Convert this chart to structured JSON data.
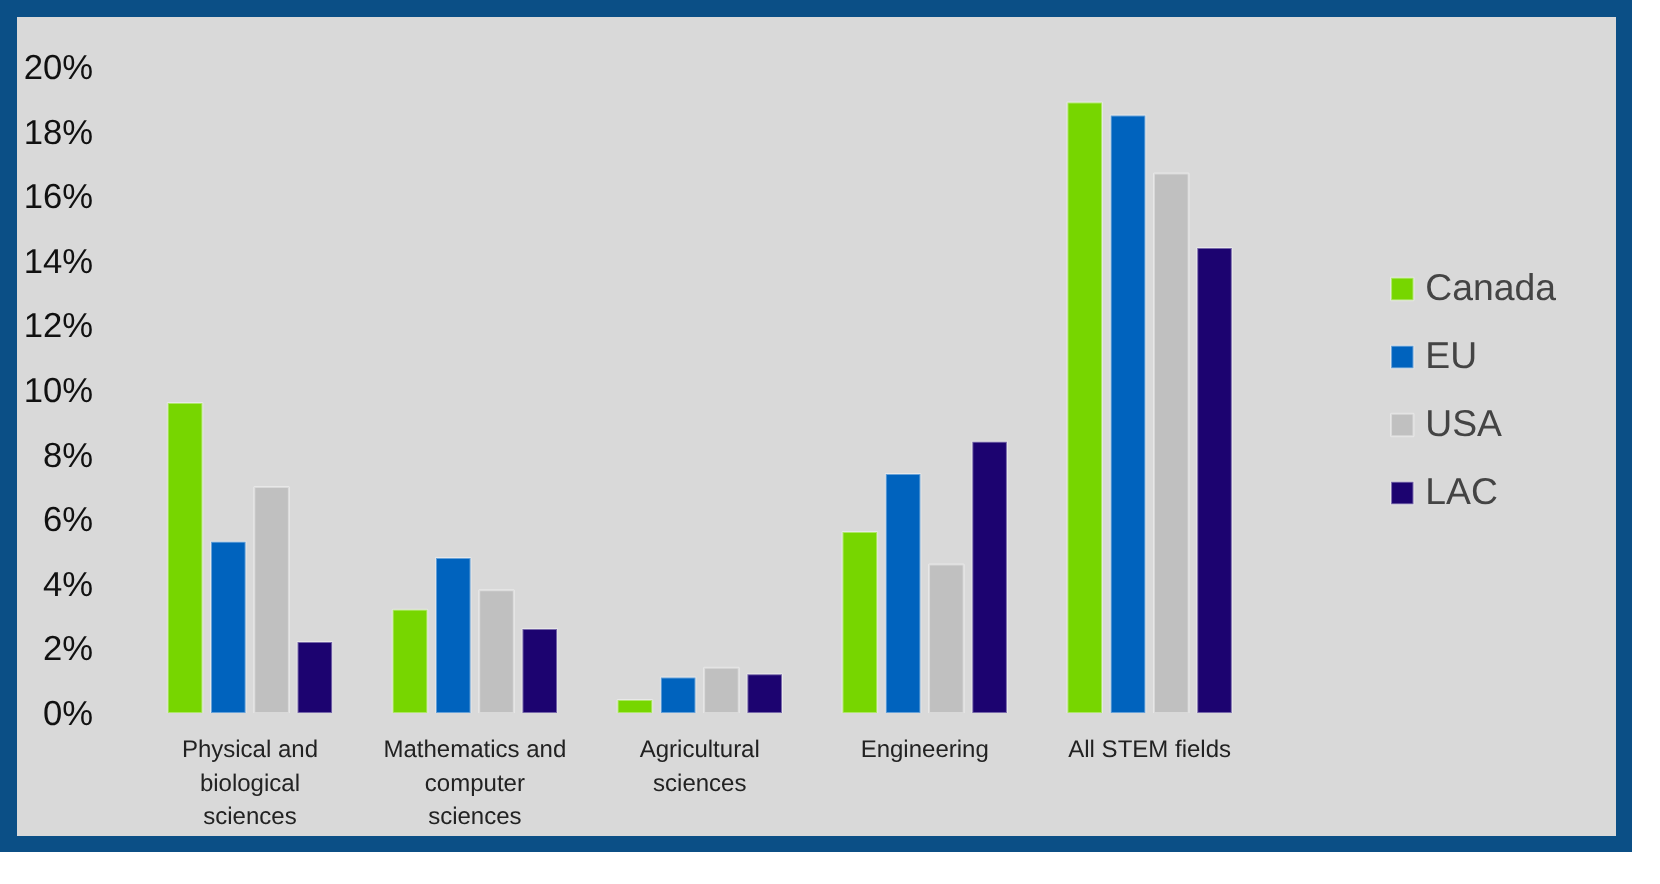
{
  "chart_data": {
    "type": "bar",
    "categories": [
      "Physical and biological sciences",
      "Mathematics and computer sciences",
      "Agricultural sciences",
      "Engineering",
      "All STEM fields"
    ],
    "series": [
      {
        "name": "Canada",
        "color": "#77d600",
        "values": [
          9.6,
          3.2,
          0.4,
          5.6,
          18.9
        ]
      },
      {
        "name": "EU",
        "color": "#0063be",
        "values": [
          5.3,
          4.8,
          1.1,
          7.4,
          18.5
        ]
      },
      {
        "name": "USA",
        "color": "#c0c0c0",
        "values": [
          7.0,
          3.8,
          1.4,
          4.6,
          16.7
        ]
      },
      {
        "name": "LAC",
        "color": "#1c0370",
        "values": [
          2.2,
          2.6,
          1.2,
          8.4,
          14.4
        ]
      }
    ],
    "ylim": [
      0,
      20
    ],
    "yticks": [
      {
        "value": 0,
        "label": "0%"
      },
      {
        "value": 2,
        "label": "2%"
      },
      {
        "value": 4,
        "label": "4%"
      },
      {
        "value": 6,
        "label": "6%"
      },
      {
        "value": 8,
        "label": "8%"
      },
      {
        "value": 10,
        "label": "10%"
      },
      {
        "value": 12,
        "label": "12%"
      },
      {
        "value": 14,
        "label": "14%"
      },
      {
        "value": 16,
        "label": "16%"
      },
      {
        "value": 18,
        "label": "18%"
      },
      {
        "value": 20,
        "label": "20%"
      }
    ],
    "grid": false,
    "legend": "right"
  }
}
